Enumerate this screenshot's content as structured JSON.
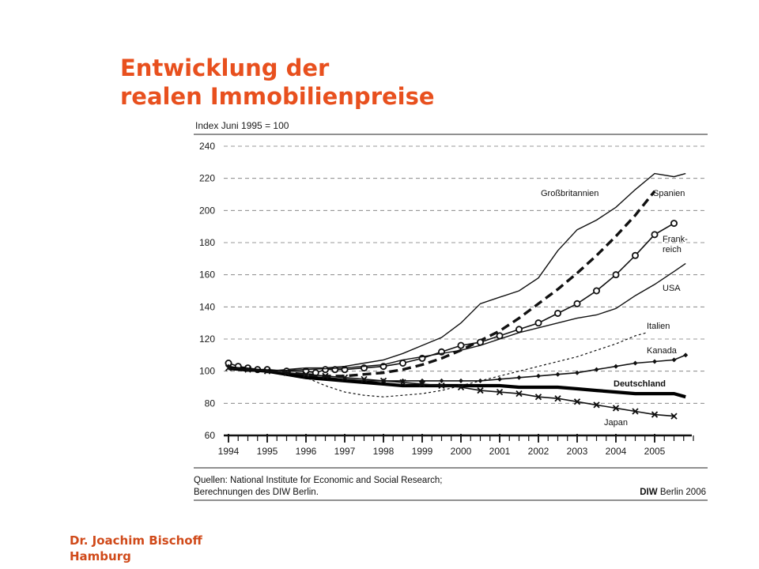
{
  "slide": {
    "title_line1": "Entwicklung der",
    "title_line2": "realen Immobilienpreise",
    "author_name": "Dr. Joachim Bischoff",
    "author_city": "Hamburg",
    "accent_color": "#e8501e"
  },
  "chart_data": {
    "type": "line",
    "index_label": "Index Juni 1995 = 100",
    "ylim": [
      60,
      240
    ],
    "yticks": [
      60,
      80,
      100,
      120,
      140,
      160,
      180,
      200,
      220,
      240
    ],
    "xlim": [
      1994,
      2006
    ],
    "xticks": [
      "1994",
      "1995",
      "1996",
      "1997",
      "1998",
      "1999",
      "2000",
      "2001",
      "2002",
      "2003",
      "2004",
      "2005"
    ],
    "grid": "horizontal dashed",
    "series": [
      {
        "name": "Großbritannien",
        "style": "solid-thin",
        "points": [
          [
            1994.0,
            101
          ],
          [
            1994.5,
            100
          ],
          [
            1995.0,
            100
          ],
          [
            1995.5,
            101
          ],
          [
            1996.0,
            102
          ],
          [
            1996.5,
            102
          ],
          [
            1997.0,
            103
          ],
          [
            1997.5,
            105
          ],
          [
            1998.0,
            107
          ],
          [
            1998.5,
            111
          ],
          [
            1999.0,
            116
          ],
          [
            1999.5,
            121
          ],
          [
            2000.0,
            130
          ],
          [
            2000.5,
            142
          ],
          [
            2001.0,
            146
          ],
          [
            2001.5,
            150
          ],
          [
            2002.0,
            158
          ],
          [
            2002.5,
            175
          ],
          [
            2003.0,
            188
          ],
          [
            2003.5,
            194
          ],
          [
            2004.0,
            202
          ],
          [
            2004.5,
            213
          ],
          [
            2005.0,
            223
          ],
          [
            2005.5,
            221
          ],
          [
            2005.8,
            223
          ]
        ]
      },
      {
        "name": "Spanien",
        "style": "dashed-bold",
        "points": [
          [
            1994.0,
            102
          ],
          [
            1995.0,
            100
          ],
          [
            1996.0,
            98
          ],
          [
            1996.5,
            97
          ],
          [
            1997.0,
            97
          ],
          [
            1997.5,
            98
          ],
          [
            1998.0,
            99
          ],
          [
            1998.5,
            101
          ],
          [
            1999.0,
            104
          ],
          [
            1999.5,
            108
          ],
          [
            2000.0,
            113
          ],
          [
            2000.5,
            119
          ],
          [
            2001.0,
            125
          ],
          [
            2001.5,
            133
          ],
          [
            2002.0,
            142
          ],
          [
            2002.5,
            151
          ],
          [
            2003.0,
            161
          ],
          [
            2003.5,
            172
          ],
          [
            2004.0,
            184
          ],
          [
            2004.5,
            197
          ],
          [
            2005.0,
            212
          ]
        ]
      },
      {
        "name": "Frank-\nreich",
        "style": "circles",
        "points": [
          [
            1994.0,
            105
          ],
          [
            1994.25,
            103
          ],
          [
            1994.5,
            102
          ],
          [
            1994.75,
            101
          ],
          [
            1995.0,
            101
          ],
          [
            1995.5,
            100
          ],
          [
            1996.0,
            100
          ],
          [
            1996.25,
            99
          ],
          [
            1996.5,
            101
          ],
          [
            1996.75,
            101
          ],
          [
            1997.0,
            101
          ],
          [
            1997.5,
            102
          ],
          [
            1998.0,
            103
          ],
          [
            1998.5,
            105
          ],
          [
            1999.0,
            108
          ],
          [
            1999.5,
            112
          ],
          [
            2000.0,
            116
          ],
          [
            2000.5,
            118
          ],
          [
            2001.0,
            122
          ],
          [
            2001.5,
            126
          ],
          [
            2002.0,
            130
          ],
          [
            2002.5,
            136
          ],
          [
            2003.0,
            142
          ],
          [
            2003.5,
            150
          ],
          [
            2004.0,
            160
          ],
          [
            2004.5,
            172
          ],
          [
            2005.0,
            185
          ],
          [
            2005.5,
            192
          ]
        ]
      },
      {
        "name": "USA",
        "style": "solid-thin",
        "points": [
          [
            1994.0,
            101
          ],
          [
            1995.0,
            100
          ],
          [
            1996.0,
            101
          ],
          [
            1997.0,
            102
          ],
          [
            1998.0,
            104
          ],
          [
            1998.5,
            107
          ],
          [
            1999.0,
            109
          ],
          [
            1999.5,
            111
          ],
          [
            2000.0,
            113
          ],
          [
            2000.5,
            116
          ],
          [
            2001.0,
            120
          ],
          [
            2001.5,
            124
          ],
          [
            2002.0,
            127
          ],
          [
            2002.5,
            130
          ],
          [
            2003.0,
            133
          ],
          [
            2003.5,
            135
          ],
          [
            2004.0,
            139
          ],
          [
            2004.5,
            147
          ],
          [
            2005.0,
            154
          ],
          [
            2005.5,
            162
          ],
          [
            2005.8,
            167
          ]
        ]
      },
      {
        "name": "Italien",
        "style": "dotted",
        "points": [
          [
            1994.0,
            102
          ],
          [
            1995.0,
            100
          ],
          [
            1996.0,
            96
          ],
          [
            1996.5,
            91
          ],
          [
            1997.0,
            87
          ],
          [
            1997.5,
            85
          ],
          [
            1998.0,
            84
          ],
          [
            1998.5,
            85
          ],
          [
            1999.0,
            86
          ],
          [
            1999.5,
            88
          ],
          [
            2000.0,
            91
          ],
          [
            2000.5,
            94
          ],
          [
            2001.0,
            97
          ],
          [
            2001.5,
            100
          ],
          [
            2002.0,
            103
          ],
          [
            2002.5,
            106
          ],
          [
            2003.0,
            109
          ],
          [
            2003.5,
            113
          ],
          [
            2004.0,
            117
          ],
          [
            2004.5,
            122
          ],
          [
            2004.8,
            124
          ]
        ]
      },
      {
        "name": "Kanada",
        "style": "diamonds",
        "points": [
          [
            1994.0,
            103
          ],
          [
            1994.5,
            101
          ],
          [
            1995.0,
            100
          ],
          [
            1995.5,
            99
          ],
          [
            1996.0,
            97
          ],
          [
            1996.5,
            96
          ],
          [
            1997.0,
            95
          ],
          [
            1997.5,
            94
          ],
          [
            1998.0,
            94
          ],
          [
            1998.5,
            94
          ],
          [
            1999.0,
            94
          ],
          [
            1999.5,
            94
          ],
          [
            2000.0,
            94
          ],
          [
            2000.5,
            94
          ],
          [
            2001.0,
            95
          ],
          [
            2001.5,
            96
          ],
          [
            2002.0,
            97
          ],
          [
            2002.5,
            98
          ],
          [
            2003.0,
            99
          ],
          [
            2003.5,
            101
          ],
          [
            2004.0,
            103
          ],
          [
            2004.5,
            105
          ],
          [
            2005.0,
            106
          ],
          [
            2005.5,
            107
          ],
          [
            2005.8,
            110
          ]
        ]
      },
      {
        "name": "Deutschland",
        "style": "solid-heavy",
        "points": [
          [
            1994.0,
            102
          ],
          [
            1994.5,
            101
          ],
          [
            1995.0,
            100
          ],
          [
            1995.5,
            98
          ],
          [
            1996.0,
            96
          ],
          [
            1996.5,
            95
          ],
          [
            1997.0,
            94
          ],
          [
            1997.5,
            93
          ],
          [
            1998.0,
            92
          ],
          [
            1998.5,
            91
          ],
          [
            1999.0,
            91
          ],
          [
            1999.5,
            91
          ],
          [
            2000.0,
            91
          ],
          [
            2000.5,
            91
          ],
          [
            2001.0,
            91
          ],
          [
            2001.5,
            90
          ],
          [
            2002.0,
            90
          ],
          [
            2002.5,
            90
          ],
          [
            2003.0,
            89
          ],
          [
            2003.5,
            88
          ],
          [
            2004.0,
            87
          ],
          [
            2004.5,
            86
          ],
          [
            2005.0,
            86
          ],
          [
            2005.5,
            86
          ],
          [
            2005.8,
            84
          ]
        ]
      },
      {
        "name": "Japan",
        "style": "crosses",
        "points": [
          [
            1994.0,
            102
          ],
          [
            1994.5,
            101
          ],
          [
            1995.0,
            100
          ],
          [
            1995.5,
            99
          ],
          [
            1996.0,
            98
          ],
          [
            1996.5,
            97
          ],
          [
            1997.0,
            96
          ],
          [
            1997.5,
            95
          ],
          [
            1998.0,
            94
          ],
          [
            1998.5,
            93
          ],
          [
            1999.0,
            92
          ],
          [
            1999.5,
            91
          ],
          [
            2000.0,
            90
          ],
          [
            2000.5,
            88
          ],
          [
            2001.0,
            87
          ],
          [
            2001.5,
            86
          ],
          [
            2002.0,
            84
          ],
          [
            2002.5,
            83
          ],
          [
            2003.0,
            81
          ],
          [
            2003.5,
            79
          ],
          [
            2004.0,
            77
          ],
          [
            2004.5,
            75
          ],
          [
            2005.0,
            73
          ],
          [
            2005.5,
            72
          ]
        ]
      }
    ],
    "source_line1": "Quellen: National Institute for Economic and Social Research;",
    "source_line2": "Berechnungen des DIW Berlin.",
    "credit_bold": "DIW",
    "credit_rest": "Berlin 2006"
  }
}
